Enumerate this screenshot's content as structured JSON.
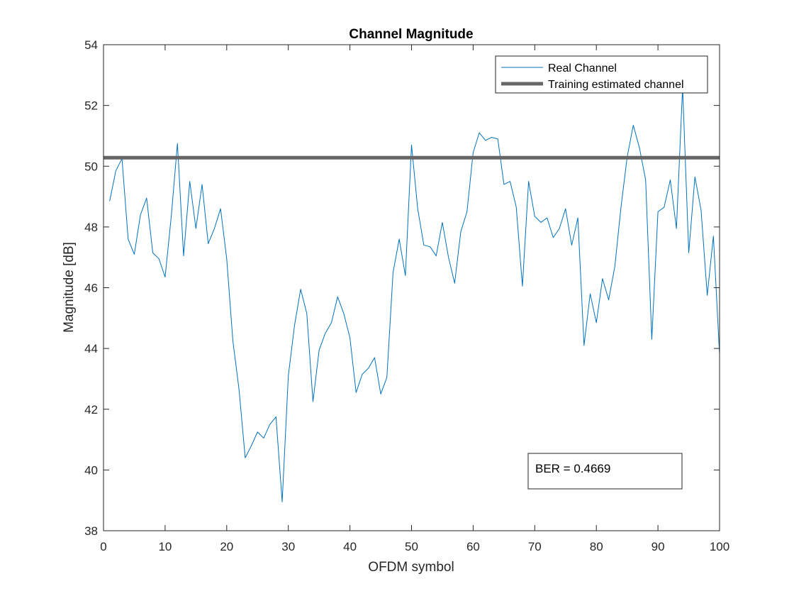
{
  "chart_data": {
    "type": "line",
    "title": "Channel Magnitude",
    "xlabel": "OFDM symbol",
    "ylabel": "Magnitude [dB]",
    "xlim": [
      0,
      100
    ],
    "ylim": [
      38,
      54
    ],
    "xticks": [
      0,
      10,
      20,
      30,
      40,
      50,
      60,
      70,
      80,
      90,
      100
    ],
    "yticks": [
      38,
      40,
      42,
      44,
      46,
      48,
      50,
      52,
      54
    ],
    "grid": false,
    "legend_position": "top-right",
    "series": [
      {
        "name": "Real Channel",
        "color": "#0072BD",
        "x": [
          1,
          2,
          3,
          4,
          5,
          6,
          7,
          8,
          9,
          10,
          11,
          12,
          13,
          14,
          15,
          16,
          17,
          18,
          19,
          20,
          21,
          22,
          23,
          24,
          25,
          26,
          27,
          28,
          29,
          30,
          31,
          32,
          33,
          34,
          35,
          36,
          37,
          38,
          39,
          40,
          41,
          42,
          43,
          44,
          45,
          46,
          47,
          48,
          49,
          50,
          51,
          52,
          53,
          54,
          55,
          56,
          57,
          58,
          59,
          60,
          61,
          62,
          63,
          64,
          65,
          66,
          67,
          68,
          69,
          70,
          71,
          72,
          73,
          74,
          75,
          76,
          77,
          78,
          79,
          80,
          81,
          82,
          83,
          84,
          85,
          86,
          87,
          88,
          89,
          90,
          91,
          92,
          93,
          94,
          95,
          96,
          97,
          98,
          99,
          100
        ],
        "y": [
          48.85,
          49.85,
          50.25,
          47.6,
          47.1,
          48.4,
          48.95,
          47.15,
          46.95,
          46.35,
          48.35,
          50.75,
          47.05,
          49.5,
          47.95,
          49.4,
          47.45,
          47.95,
          48.6,
          46.95,
          44.25,
          42.65,
          40.4,
          40.8,
          41.25,
          41.05,
          41.5,
          41.75,
          38.95,
          43.1,
          44.75,
          45.95,
          45.15,
          42.25,
          43.95,
          44.5,
          44.85,
          45.7,
          45.15,
          44.35,
          42.55,
          43.15,
          43.35,
          43.7,
          42.5,
          43.05,
          46.5,
          47.6,
          46.4,
          50.7,
          48.6,
          47.4,
          47.35,
          47.05,
          48.15,
          47.0,
          46.15,
          47.85,
          48.5,
          50.45,
          51.1,
          50.85,
          50.95,
          50.9,
          49.4,
          49.5,
          48.65,
          46.05,
          49.5,
          48.35,
          48.15,
          48.3,
          47.65,
          47.95,
          48.6,
          47.4,
          48.3,
          44.1,
          45.8,
          44.85,
          46.3,
          45.6,
          46.7,
          48.65,
          50.3,
          51.35,
          50.6,
          49.55,
          44.3,
          48.5,
          48.65,
          49.55,
          47.95,
          52.6,
          47.15,
          49.65,
          48.55,
          45.75,
          47.7,
          43.8
        ]
      },
      {
        "name": "Training estimated channel",
        "color": "#666666",
        "x": [
          0,
          100
        ],
        "y": [
          50.28,
          50.28
        ]
      }
    ],
    "annotation": "BER = 0.4669"
  }
}
